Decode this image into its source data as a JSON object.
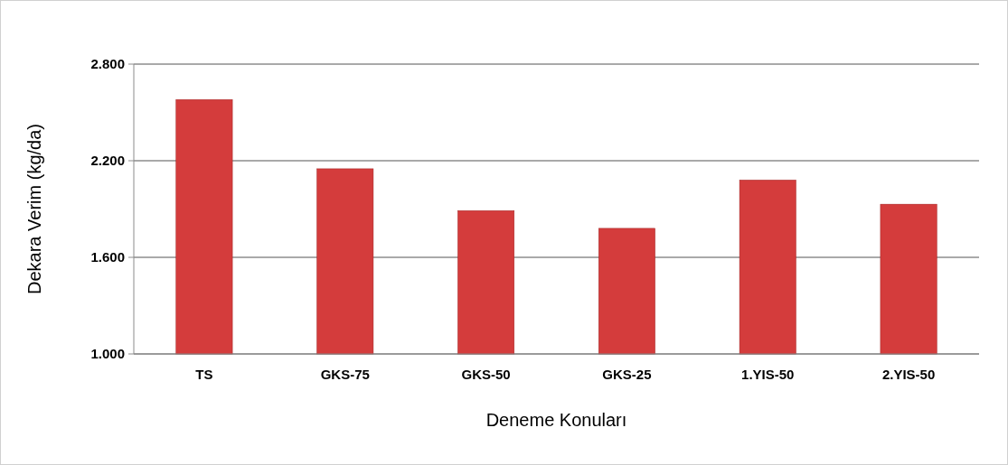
{
  "chart_data": {
    "type": "bar",
    "xlabel": "Deneme Konuları",
    "ylabel": "Dekara Verim (kg/da)",
    "categories": [
      "TS",
      "GKS-75",
      "GKS-50",
      "GKS-25",
      "1.YIS-50",
      "2.YIS-50"
    ],
    "values": [
      2580,
      2150,
      1890,
      1780,
      2080,
      1930
    ],
    "color": "#d43c3c",
    "ylim": [
      1000,
      2800
    ],
    "yticks": [
      {
        "value": 1000,
        "label": "1.000"
      },
      {
        "value": 1600,
        "label": "1.600"
      },
      {
        "value": 2200,
        "label": "2.200"
      },
      {
        "value": 2800,
        "label": "2.800"
      }
    ],
    "grid": "y"
  }
}
